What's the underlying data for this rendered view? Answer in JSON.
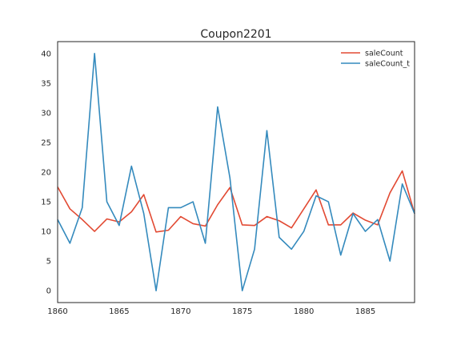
{
  "chart_data": {
    "type": "line",
    "title": "Coupon2201",
    "xlabel": "",
    "ylabel": "",
    "xlim": [
      1860,
      1889
    ],
    "ylim": [
      -2,
      42
    ],
    "x_ticks": [
      1860,
      1865,
      1870,
      1875,
      1880,
      1885
    ],
    "y_ticks": [
      0,
      5,
      10,
      15,
      20,
      25,
      30,
      35,
      40
    ],
    "grid": false,
    "legend_position": "top-right",
    "x": [
      1860,
      1861,
      1862,
      1863,
      1864,
      1865,
      1866,
      1867,
      1868,
      1869,
      1870,
      1871,
      1872,
      1873,
      1874,
      1875,
      1876,
      1877,
      1878,
      1879,
      1880,
      1881,
      1882,
      1883,
      1884,
      1885,
      1886,
      1887,
      1888,
      1889
    ],
    "series": [
      {
        "name": "saleCount",
        "color": "#E24A33",
        "values": [
          17.5,
          13.8,
          12.0,
          10.0,
          12.1,
          11.6,
          13.3,
          16.2,
          9.9,
          10.2,
          12.5,
          11.3,
          10.9,
          14.5,
          17.4,
          11.1,
          11.0,
          12.5,
          11.8,
          10.6,
          13.8,
          17.0,
          11.1,
          11.1,
          13.1,
          11.9,
          11.1,
          16.5,
          20.2,
          13.0
        ]
      },
      {
        "name": "saleCount_t",
        "color": "#348ABD",
        "values": [
          12,
          8,
          14,
          40,
          15,
          11,
          21,
          13,
          0,
          14,
          14,
          15,
          8,
          31,
          19,
          0,
          7,
          27,
          9,
          7,
          10,
          16,
          15,
          6,
          13,
          10,
          12,
          5,
          18,
          13
        ]
      }
    ]
  }
}
